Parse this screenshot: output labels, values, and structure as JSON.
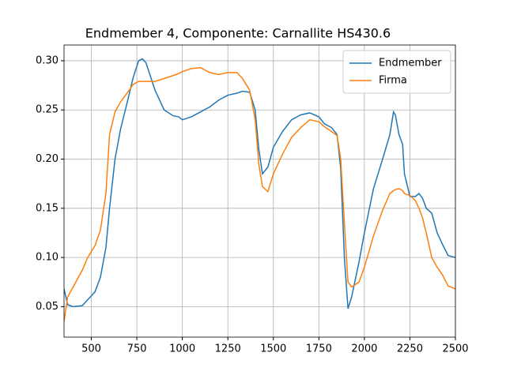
{
  "chart_data": {
    "type": "line",
    "title": "Endmember 4, Componente: Carnallite HS430.6",
    "x": [
      350,
      370,
      400,
      450,
      480,
      520,
      550,
      580,
      600,
      630,
      660,
      700,
      730,
      760,
      780,
      800,
      850,
      900,
      950,
      980,
      1000,
      1050,
      1100,
      1150,
      1200,
      1250,
      1300,
      1330,
      1370,
      1400,
      1420,
      1440,
      1470,
      1500,
      1550,
      1600,
      1650,
      1700,
      1750,
      1780,
      1820,
      1850,
      1870,
      1890,
      1910,
      1930,
      1970,
      2000,
      2050,
      2100,
      2140,
      2160,
      2170,
      2190,
      2210,
      2220,
      2250,
      2280,
      2300,
      2320,
      2340,
      2370,
      2400,
      2430,
      2460,
      2500
    ],
    "series": [
      {
        "name": "Endmember",
        "color": "#1f77b4",
        "values": [
          0.068,
          0.052,
          0.05,
          0.051,
          0.057,
          0.065,
          0.08,
          0.11,
          0.15,
          0.2,
          0.23,
          0.26,
          0.283,
          0.3,
          0.302,
          0.298,
          0.27,
          0.25,
          0.244,
          0.243,
          0.24,
          0.243,
          0.248,
          0.253,
          0.26,
          0.265,
          0.267,
          0.269,
          0.268,
          0.25,
          0.21,
          0.185,
          0.192,
          0.212,
          0.228,
          0.24,
          0.245,
          0.247,
          0.243,
          0.236,
          0.232,
          0.225,
          0.19,
          0.1,
          0.048,
          0.06,
          0.095,
          0.125,
          0.17,
          0.2,
          0.225,
          0.248,
          0.245,
          0.225,
          0.215,
          0.185,
          0.162,
          0.162,
          0.165,
          0.16,
          0.15,
          0.145,
          0.125,
          0.113,
          0.102,
          0.1
        ]
      },
      {
        "name": "Firma",
        "color": "#ff7f0e",
        "values": [
          0.035,
          0.06,
          0.07,
          0.087,
          0.1,
          0.112,
          0.128,
          0.165,
          0.225,
          0.248,
          0.258,
          0.268,
          0.276,
          0.279,
          0.279,
          0.279,
          0.279,
          0.282,
          0.285,
          0.287,
          0.289,
          0.292,
          0.293,
          0.288,
          0.286,
          0.288,
          0.288,
          0.282,
          0.27,
          0.24,
          0.195,
          0.172,
          0.167,
          0.185,
          0.205,
          0.222,
          0.232,
          0.24,
          0.238,
          0.233,
          0.228,
          0.224,
          0.2,
          0.135,
          0.075,
          0.07,
          0.075,
          0.09,
          0.122,
          0.148,
          0.165,
          0.168,
          0.169,
          0.17,
          0.168,
          0.165,
          0.163,
          0.158,
          0.15,
          0.14,
          0.125,
          0.1,
          0.09,
          0.082,
          0.071,
          0.068
        ]
      }
    ],
    "xlim": [
      350,
      2500
    ],
    "xticks": [
      500,
      750,
      1000,
      1250,
      1500,
      1750,
      2000,
      2250,
      2500
    ],
    "ylim": [
      0.019,
      0.316
    ],
    "yticks": [
      0.05,
      {
        "value": 0.1,
        "label": "0.10"
      },
      0.15,
      {
        "value": 0.2,
        "label": "0.20"
      },
      0.25,
      {
        "value": 0.3,
        "label": "0.30"
      }
    ],
    "grid": true,
    "legend": "upper-right"
  }
}
